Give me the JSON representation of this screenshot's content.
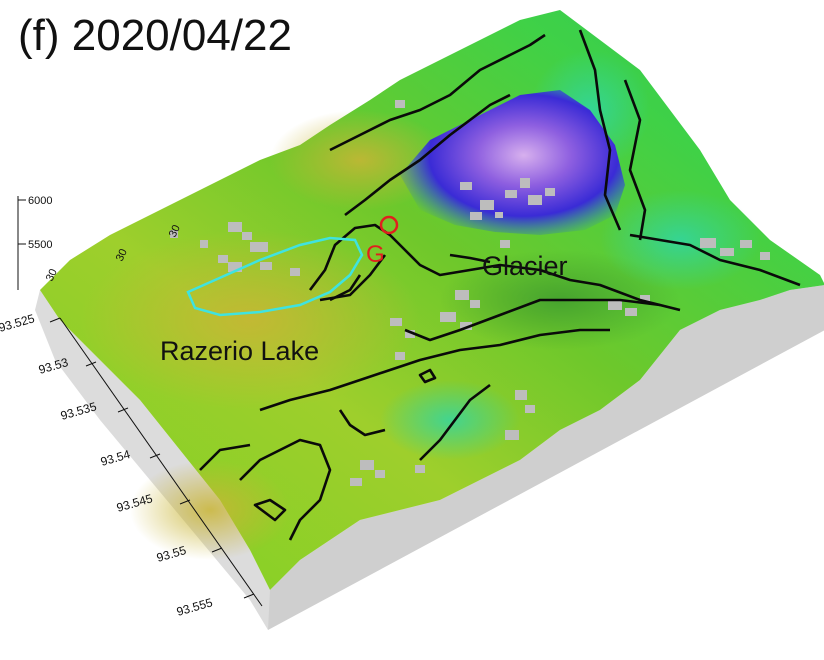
{
  "panel_label": "(f) 2020/04/22",
  "labels": {
    "glacier": "Glacier",
    "lake": "Razerio Lake",
    "marker": "G"
  },
  "axis_y_ticks": [
    "93.525",
    "93.53",
    "93.535",
    "93.54",
    "93.545",
    "93.55",
    "93.555"
  ],
  "axis_z_ticks": [
    "6000",
    "5500"
  ],
  "axis_x_ticks": [
    "30",
    "30",
    "30"
  ],
  "colors": {
    "lake_outline": "#3fe3e0",
    "marker": "#e0201e",
    "contour": "#0a0a0a",
    "low_gradient": [
      "#7fb81e",
      "#44c82a"
    ],
    "high_gradient": [
      "#2a22c8",
      "#c9a3e8"
    ],
    "base": "#cccccc",
    "no_data": "#b9b9b9"
  },
  "icons": [
    "marker-circle-icon"
  ]
}
